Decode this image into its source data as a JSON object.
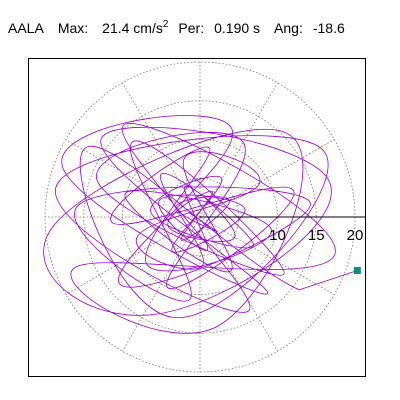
{
  "header": {
    "station": "AALA",
    "max_label": "Max:",
    "max_value": "21.4 cm/s",
    "max_exp": "2",
    "per_label": "Per:",
    "per_value": "0.190 s",
    "ang_label": "Ang:",
    "ang_value": "-18.6"
  },
  "chart_data": {
    "type": "scatter",
    "title": "AALA  Max: 21.4 cm/s2  Per: 0.190 s  Ang: -18.6",
    "xlabel": "",
    "ylabel": "",
    "radial_ticks": [
      "10",
      "15",
      "20"
    ],
    "radial_tick_values": [
      10,
      15,
      20
    ],
    "ring_values": [
      5,
      10,
      15,
      20
    ],
    "spoke_angles_deg": [
      0,
      30,
      60,
      90,
      120,
      150,
      180,
      210,
      240,
      270,
      300,
      330
    ],
    "grid": true,
    "trace_color": "#9400d3",
    "end_marker_color": "#00937a",
    "end_marker": {
      "x": 20.3,
      "y": -6.9
    },
    "series": [
      {
        "values": [
          [
            -1.5,
            0.6
          ],
          [
            2.2,
            -1.9
          ],
          [
            -3.1,
            1.4
          ],
          [
            3.8,
            2.1
          ],
          [
            -2.4,
            -3.0
          ],
          [
            1.6,
            3.3
          ],
          [
            -4.1,
            -1.2
          ],
          [
            4.5,
            -2.6
          ],
          [
            -1.9,
            4.0
          ],
          [
            0.9,
            -4.3
          ],
          [
            -5.2,
            2.2
          ],
          [
            5.8,
            1.0
          ],
          [
            -3.6,
            -4.4
          ],
          [
            2.8,
            5.0
          ],
          [
            -6.3,
            0.5
          ],
          [
            6.9,
            -3.7
          ],
          [
            -4.9,
            5.6
          ],
          [
            0.4,
            -6.1
          ],
          [
            -8.0,
            -2.4
          ],
          [
            7.6,
            4.2
          ],
          [
            -2.1,
            7.4
          ],
          [
            3.9,
            -7.0
          ],
          [
            -9.6,
            3.1
          ],
          [
            9.2,
            -1.6
          ],
          [
            -6.8,
            -6.2
          ],
          [
            1.2,
            8.9
          ],
          [
            -11.2,
            -0.8
          ],
          [
            12.0,
            3.5
          ],
          [
            -4.2,
            -9.1
          ],
          [
            5.6,
            9.6
          ],
          [
            -13.3,
            4.8
          ],
          [
            10.8,
            -7.4
          ],
          [
            -8.5,
            9.8
          ],
          [
            -1.3,
            -10.6
          ],
          [
            -15.6,
            1.6
          ],
          [
            14.2,
            1.9
          ],
          [
            -10.3,
            -8.7
          ],
          [
            4.1,
            11.4
          ],
          [
            -17.8,
            6.7
          ],
          [
            8.7,
            -9.9
          ],
          [
            -12.7,
            10.2
          ],
          [
            16.8,
            4.3
          ],
          [
            -5.4,
            -12.5
          ],
          [
            -19.1,
            -1.4
          ],
          [
            11.4,
            10.7
          ],
          [
            2.6,
            -13.9
          ],
          [
            -16.1,
            -6.5
          ],
          [
            17.4,
            -4.8
          ],
          [
            -9.8,
            11.9
          ],
          [
            6.3,
            -12.1
          ],
          [
            -18.5,
            4.1
          ],
          [
            15.9,
            8.6
          ],
          [
            -3.0,
            -13.0
          ],
          [
            -14.4,
            9.1
          ],
          [
            12.8,
            -9.4
          ],
          [
            20.3,
            -6.9
          ]
        ]
      }
    ]
  }
}
